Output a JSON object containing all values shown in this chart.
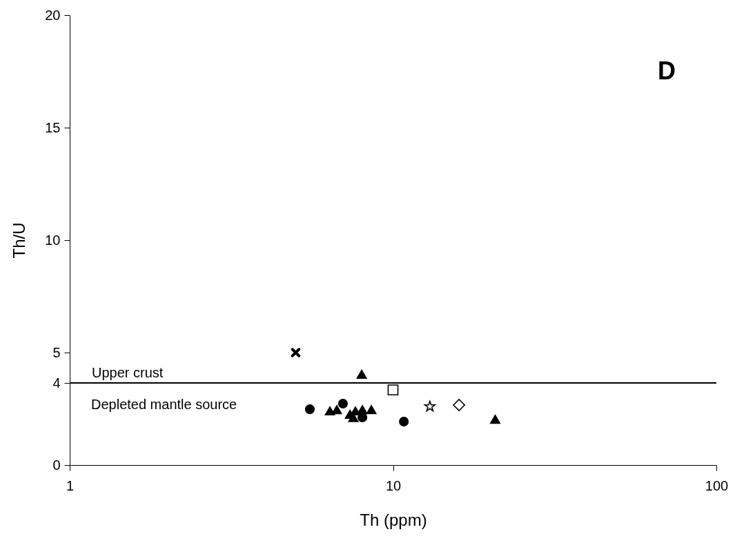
{
  "chart_data": {
    "type": "scatter",
    "xlabel": "Th (ppm)",
    "ylabel": "Th/U",
    "log": "x",
    "xlim": [
      1,
      100
    ],
    "xticks": [
      1,
      10,
      100
    ],
    "ylim": [
      0,
      20
    ],
    "yticks": [
      0,
      {
        "value": 3.65,
        "label": "4"
      },
      5,
      10,
      15,
      20
    ],
    "grid": false,
    "annotations": [
      "D",
      "Depleted mantle source"
    ],
    "ref_lines": [
      {
        "axis": "y",
        "value": 3.65,
        "label": "Upper crust",
        "color": "#000000"
      }
    ],
    "series": [
      {
        "type": "scatter",
        "marker": "cross",
        "color": "#000000",
        "x": [
          5.0
        ],
        "values": [
          5.0
        ]
      },
      {
        "type": "scatter",
        "marker": "triangle",
        "color": "#000000",
        "x": [
          8.0
        ],
        "values": [
          4.05
        ]
      },
      {
        "type": "scatter",
        "marker": "square",
        "color": "#000000",
        "x": [
          10.0
        ],
        "values": [
          3.34
        ]
      },
      {
        "type": "scatter",
        "marker": "circle",
        "color": "#000000",
        "x": [
          5.53,
          7.0,
          8.04,
          10.8
        ],
        "values": [
          2.48,
          2.73,
          2.12,
          1.93
        ]
      },
      {
        "type": "scatter",
        "marker": "triangle",
        "color": "#000000",
        "x": [
          6.38,
          6.7,
          7.36,
          7.65,
          8.04,
          8.57,
          7.54,
          20.7
        ],
        "values": [
          2.42,
          2.48,
          2.27,
          2.42,
          2.48,
          2.48,
          2.12,
          2.05
        ]
      },
      {
        "type": "scatter",
        "marker": "star",
        "color": "#000000",
        "x": [
          13.0
        ],
        "values": [
          2.6
        ]
      },
      {
        "type": "scatter",
        "marker": "diamond",
        "color": "#000000",
        "x": [
          16.0
        ],
        "values": [
          2.67
        ]
      }
    ]
  }
}
